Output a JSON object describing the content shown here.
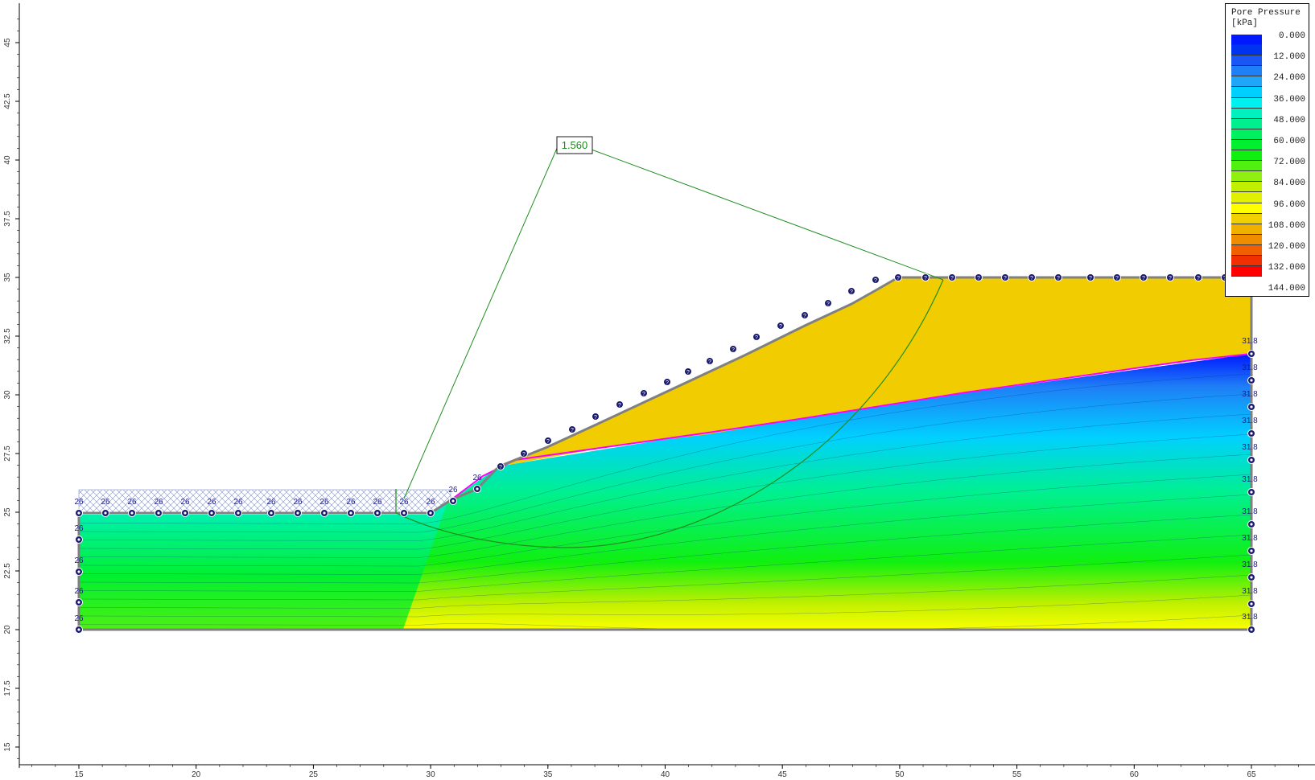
{
  "legend": {
    "title_line1": "Pore Pressure",
    "title_line2": "[kPa]",
    "values": [
      "0.000",
      "12.000",
      "24.000",
      "36.000",
      "48.000",
      "60.000",
      "72.000",
      "84.000",
      "96.000",
      "108.000",
      "120.000",
      "132.000",
      "144.000"
    ],
    "colors": [
      "#0019ff",
      "#0033f0",
      "#1a55f5",
      "#1f7ff6",
      "#20a6f8",
      "#00d0ff",
      "#00f0f0",
      "#00f0c0",
      "#00f090",
      "#00f060",
      "#00f030",
      "#10f010",
      "#50f010",
      "#90f010",
      "#c0f000",
      "#e0f000",
      "#ffff00",
      "#f0d000",
      "#f0b000",
      "#f08c00",
      "#f06000",
      "#f03000",
      "#ff0000"
    ]
  },
  "factor_of_safety": "1.560",
  "axes": {
    "x_ticks": [
      "15",
      "20",
      "25",
      "30",
      "35",
      "40",
      "45",
      "50",
      "55",
      "60",
      "65"
    ],
    "y_ticks": [
      "15",
      "17.5",
      "20",
      "22.5",
      "25",
      "27.5",
      "30",
      "32.5",
      "35",
      "37.5",
      "40",
      "42.5",
      "45"
    ]
  },
  "boundary_labels": {
    "left_head": "26",
    "right_head": "31.8",
    "unknown": "?"
  },
  "colors": {
    "unsaturated_zone": "#f0cc00",
    "phreatic_line": "#ff00ff",
    "slip_surface": "#1f8f1f",
    "node_fill": "#1a1a6e",
    "boundary": "#808080"
  }
}
